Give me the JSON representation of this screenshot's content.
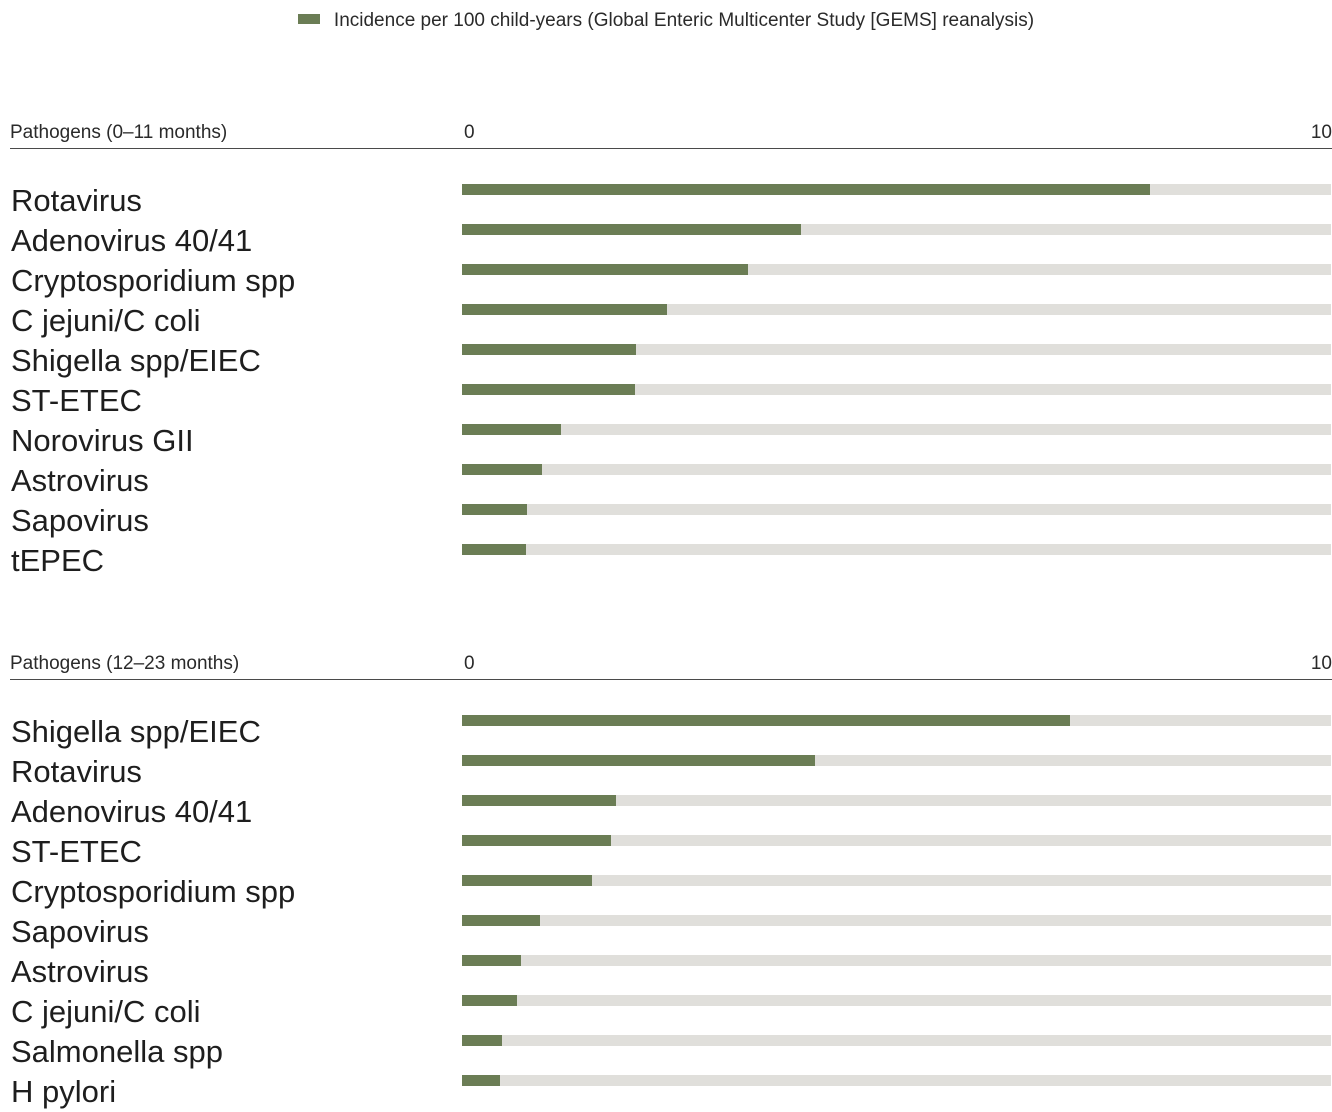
{
  "legend": {
    "label": "Incidence per 100 child-years (Global Enteric Multicenter Study [GEMS] reanalysis)",
    "color": "#6b7d55"
  },
  "colors": {
    "bar": "#6b7d55",
    "track": "#e0dfdb"
  },
  "chart_data": [
    {
      "type": "bar",
      "orientation": "horizontal",
      "panel_title": "Pathogens (0–11 months)",
      "x_min_label": "0",
      "x_max_label": "10",
      "xlim": [
        0,
        10
      ],
      "categories": [
        "Rotavirus",
        "Adenovirus 40/41",
        "Cryptosporidium spp",
        "C jejuni/C coli",
        "Shigella spp/EIEC",
        "ST-ETEC",
        "Norovirus GII",
        "Astrovirus",
        "Sapovirus",
        "tEPEC"
      ],
      "values": [
        7.92,
        3.9,
        3.29,
        2.36,
        2.0,
        1.99,
        1.14,
        0.92,
        0.75,
        0.74
      ]
    },
    {
      "type": "bar",
      "orientation": "horizontal",
      "panel_title": "Pathogens (12–23 months)",
      "x_min_label": "0",
      "x_max_label": "10",
      "xlim": [
        0,
        10
      ],
      "categories": [
        "Shigella spp/EIEC",
        "Rotavirus",
        "Adenovirus 40/41",
        "ST-ETEC",
        "Cryptosporidium spp",
        "Sapovirus",
        "Astrovirus",
        "C jejuni/C coli",
        "Salmonella spp",
        "H pylori"
      ],
      "values": [
        7.0,
        4.06,
        1.77,
        1.72,
        1.5,
        0.9,
        0.68,
        0.63,
        0.46,
        0.44
      ]
    }
  ]
}
